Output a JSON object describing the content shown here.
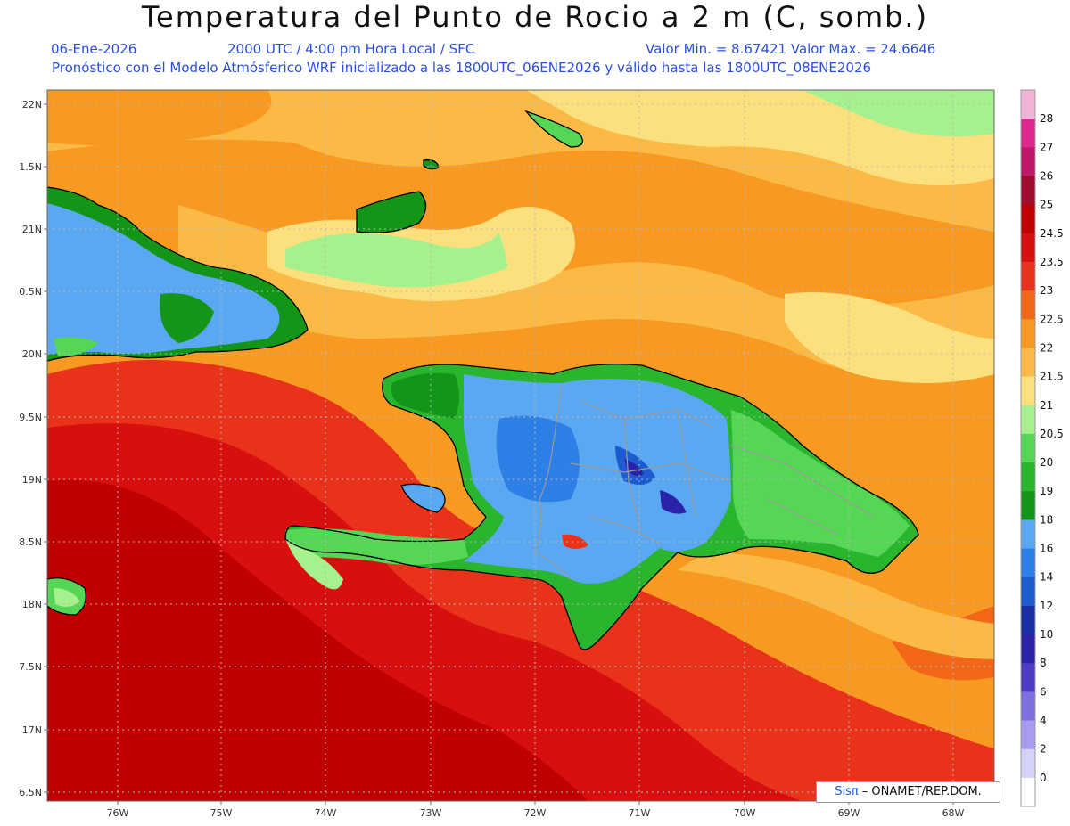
{
  "header": {
    "title": "Temperatura del Punto de Rocio a 2 m (C, somb.)",
    "date": "06-Ene-2026",
    "time": "2000 UTC / 4:00 pm Hora Local / SFC",
    "min_max": "Valor Min. = 8.67421   Valor Max. = 24.6646",
    "model_info": "Pronóstico con el Modelo Atmósferico WRF inicializado a las 1800UTC_06ENE2026 y válido hasta las  1800UTC_08ENE2026"
  },
  "axes": {
    "lat_labels": [
      "22N",
      "1.5N",
      "21N",
      "0.5N",
      "20N",
      "9.5N",
      "19N",
      "8.5N",
      "18N",
      "7.5N",
      "17N",
      "6.5N"
    ],
    "lon_labels": [
      "76W",
      "75W",
      "74W",
      "73W",
      "72W",
      "71W",
      "70W",
      "69W",
      "68W"
    ]
  },
  "colorbar": {
    "labels": [
      "28",
      "27",
      "26",
      "25",
      "24.5",
      "23.5",
      "23",
      "22.5",
      "22",
      "21.5",
      "21",
      "20.5",
      "20",
      "19",
      "18",
      "16",
      "14",
      "12",
      "10",
      "8",
      "6",
      "4",
      "2",
      "0"
    ],
    "colors": [
      "#f4b3d6",
      "#e0268f",
      "#c0176a",
      "#a00b2e",
      "#c00000",
      "#d80f0f",
      "#e8331a",
      "#f26718",
      "#f89a22",
      "#fbba46",
      "#fde07e",
      "#a6f08e",
      "#56d655",
      "#2ab52e",
      "#139617",
      "#5aa8f2",
      "#2e7fe6",
      "#1d5bd0",
      "#1a2ea7",
      "#2a22a8",
      "#4c3cc4",
      "#7d6fe0",
      "#a99bf0",
      "#d4d2f8",
      "#ffffff"
    ]
  },
  "credit": {
    "brand": "Sisπ",
    "rest": " – ONAMET/REP.DOM."
  }
}
